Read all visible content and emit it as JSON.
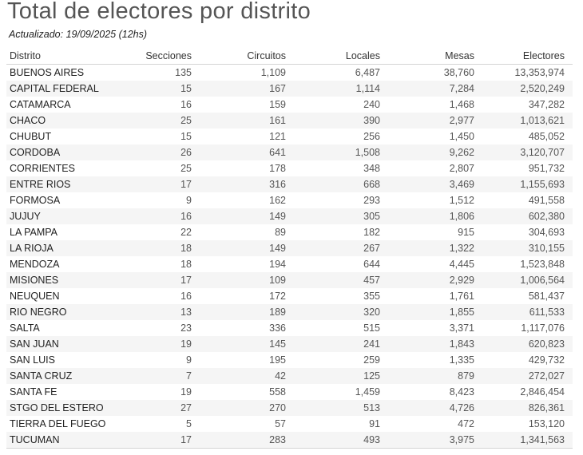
{
  "title": "Total de electores por distrito",
  "subtitle": "Actualizado: 19/09/2025 (12hs)",
  "table": {
    "columns": [
      "Distrito",
      "Secciones",
      "Circuitos",
      "Locales",
      "Mesas",
      "Electores"
    ],
    "rows": [
      [
        "BUENOS AIRES",
        "135",
        "1,109",
        "6,487",
        "38,760",
        "13,353,974"
      ],
      [
        "CAPITAL FEDERAL",
        "15",
        "167",
        "1,114",
        "7,284",
        "2,520,249"
      ],
      [
        "CATAMARCA",
        "16",
        "159",
        "240",
        "1,468",
        "347,282"
      ],
      [
        "CHACO",
        "25",
        "161",
        "390",
        "2,977",
        "1,013,621"
      ],
      [
        "CHUBUT",
        "15",
        "121",
        "256",
        "1,450",
        "485,052"
      ],
      [
        "CORDOBA",
        "26",
        "641",
        "1,508",
        "9,262",
        "3,120,707"
      ],
      [
        "CORRIENTES",
        "25",
        "178",
        "348",
        "2,807",
        "951,732"
      ],
      [
        "ENTRE RIOS",
        "17",
        "316",
        "668",
        "3,469",
        "1,155,693"
      ],
      [
        "FORMOSA",
        "9",
        "162",
        "293",
        "1,512",
        "491,558"
      ],
      [
        "JUJUY",
        "16",
        "149",
        "305",
        "1,806",
        "602,380"
      ],
      [
        "LA PAMPA",
        "22",
        "89",
        "182",
        "915",
        "304,693"
      ],
      [
        "LA RIOJA",
        "18",
        "149",
        "267",
        "1,322",
        "310,155"
      ],
      [
        "MENDOZA",
        "18",
        "194",
        "644",
        "4,445",
        "1,523,848"
      ],
      [
        "MISIONES",
        "17",
        "109",
        "457",
        "2,929",
        "1,006,564"
      ],
      [
        "NEUQUEN",
        "16",
        "172",
        "355",
        "1,761",
        "581,437"
      ],
      [
        "RIO NEGRO",
        "13",
        "189",
        "320",
        "1,855",
        "611,533"
      ],
      [
        "SALTA",
        "23",
        "336",
        "515",
        "3,371",
        "1,117,076"
      ],
      [
        "SAN JUAN",
        "19",
        "145",
        "241",
        "1,843",
        "620,823"
      ],
      [
        "SAN LUIS",
        "9",
        "195",
        "259",
        "1,335",
        "429,732"
      ],
      [
        "SANTA CRUZ",
        "7",
        "42",
        "125",
        "879",
        "272,027"
      ],
      [
        "SANTA FE",
        "19",
        "558",
        "1,459",
        "8,423",
        "2,846,454"
      ],
      [
        "STGO DEL ESTERO",
        "27",
        "270",
        "513",
        "4,726",
        "826,361"
      ],
      [
        "TIERRA DEL FUEGO",
        "5",
        "57",
        "91",
        "472",
        "153,120"
      ],
      [
        "TUCUMAN",
        "17",
        "283",
        "493",
        "3,975",
        "1,341,563"
      ]
    ]
  },
  "colors": {
    "row_alt_bg": "#f5f5f5",
    "border": "#d4d4d4",
    "title": "#555555"
  }
}
